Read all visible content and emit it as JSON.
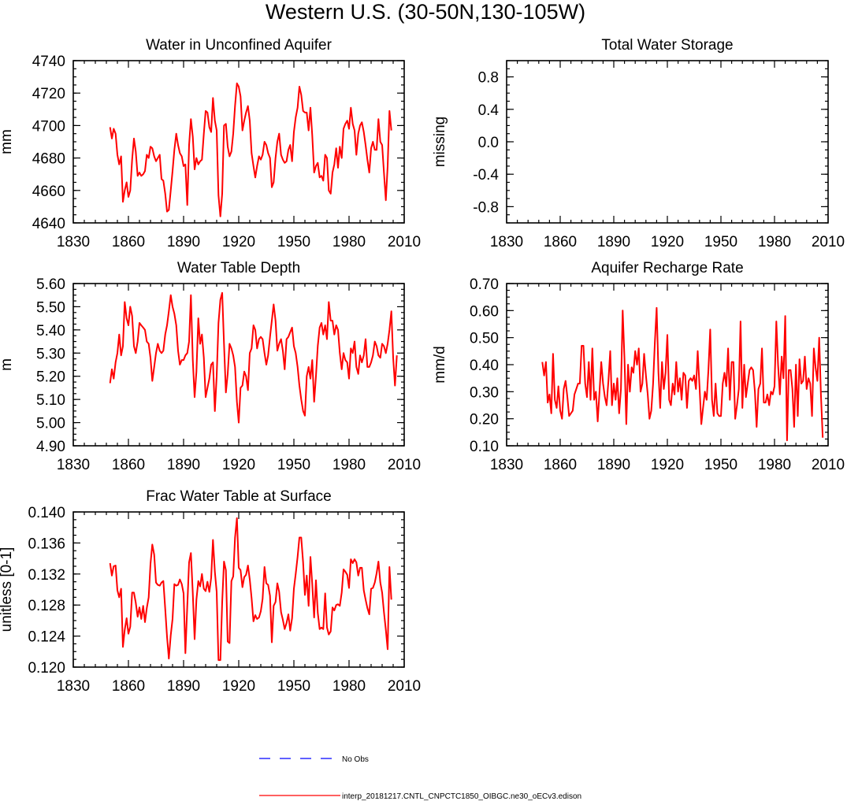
{
  "page": {
    "title": "Western U.S. (30-50N,130-105W)"
  },
  "legend": {
    "obs_label": "No Obs",
    "obs_color": "#0000ff",
    "model_label": "interp_20181217.CNTL_CNPCTC1850_OIBGC.ne30_oECv3.edison",
    "model_color": "#ff0000"
  },
  "chart_data": [
    {
      "id": "aquifer",
      "type": "line",
      "title": "Water in Unconfined Aquifer",
      "ylabel": "mm",
      "xlabel": "",
      "xlim": [
        1830,
        2010
      ],
      "xticks": [
        1830,
        1860,
        1890,
        1920,
        1950,
        1980,
        2010
      ],
      "ylim": [
        4640,
        4740
      ],
      "yticks": [
        "4640",
        "4660",
        "4680",
        "4700",
        "4720",
        "4740"
      ],
      "x_start": 1850,
      "series": [
        {
          "name": "interp_20181217.CNTL_CNPCTC1850_OIBGC.ne30_oECv3.edison",
          "values": [
            4699,
            4692,
            4698,
            4695,
            4682,
            4676,
            4681,
            4653,
            4660,
            4665,
            4656,
            4660,
            4679,
            4692,
            4684,
            4669,
            4671,
            4669,
            4670,
            4672,
            4682,
            4680,
            4687,
            4686,
            4681,
            4678,
            4680,
            4682,
            4667,
            4666,
            4658,
            4647,
            4648,
            4660,
            4672,
            4685,
            4695,
            4688,
            4683,
            4681,
            4675,
            4676,
            4651,
            4688,
            4704,
            4693,
            4673,
            4680,
            4676,
            4678,
            4679,
            4695,
            4709,
            4708,
            4699,
            4696,
            4717,
            4703,
            4697,
            4657,
            4644,
            4658,
            4700,
            4701,
            4687,
            4681,
            4684,
            4695,
            4712,
            4726,
            4724,
            4718,
            4697,
            4703,
            4708,
            4712,
            4703,
            4683,
            4675,
            4668,
            4675,
            4681,
            4679,
            4682,
            4690,
            4688,
            4683,
            4680,
            4662,
            4665,
            4680,
            4690,
            4695,
            4682,
            4679,
            4677,
            4678,
            4685,
            4688,
            4678,
            4696,
            4705,
            4711,
            4724,
            4719,
            4709,
            4708,
            4708,
            4697,
            4711,
            4694,
            4671,
            4675,
            4677,
            4668,
            4669,
            4666,
            4682,
            4680,
            4660,
            4658,
            4671,
            4676,
            4686,
            4674,
            4687,
            4680,
            4698,
            4701,
            4703,
            4698,
            4711,
            4701,
            4697,
            4682,
            4695,
            4700,
            4702,
            4696,
            4688,
            4679,
            4671,
            4686,
            4690,
            4685,
            4685,
            4704,
            4690,
            4688,
            4671,
            4654,
            4675,
            4709,
            4697
          ]
        }
      ]
    },
    {
      "id": "tws",
      "type": "line",
      "title": "Total Water Storage",
      "ylabel": "missing",
      "xlabel": "",
      "xlim": [
        1830,
        2010
      ],
      "xticks": [
        1830,
        1860,
        1890,
        1920,
        1950,
        1980,
        2010
      ],
      "ylim": [
        -1,
        1
      ],
      "yticks": [
        "-0.8",
        "-0.4",
        "0.0",
        "0.4",
        "0.8"
      ],
      "x_start": 1850,
      "series": []
    },
    {
      "id": "wtd",
      "type": "line",
      "title": "Water Table Depth",
      "ylabel": "m",
      "xlabel": "",
      "xlim": [
        1830,
        2010
      ],
      "xticks": [
        1830,
        1860,
        1890,
        1920,
        1950,
        1980,
        2010
      ],
      "ylim": [
        4.9,
        5.6
      ],
      "yticks": [
        "4.90",
        "5.00",
        "5.10",
        "5.20",
        "5.30",
        "5.40",
        "5.50",
        "5.60"
      ],
      "x_start": 1850,
      "series": [
        {
          "name": "interp_20181217.CNTL_CNPCTC1850_OIBGC.ne30_oECv3.edison",
          "values": [
            5.17,
            5.23,
            5.19,
            5.26,
            5.3,
            5.38,
            5.29,
            5.33,
            5.52,
            5.45,
            5.42,
            5.5,
            5.46,
            5.33,
            5.3,
            5.35,
            5.43,
            5.42,
            5.41,
            5.4,
            5.35,
            5.34,
            5.28,
            5.18,
            5.24,
            5.3,
            5.34,
            5.31,
            5.3,
            5.31,
            5.38,
            5.42,
            5.48,
            5.55,
            5.5,
            5.47,
            5.42,
            5.31,
            5.25,
            5.27,
            5.27,
            5.29,
            5.3,
            5.35,
            5.55,
            5.27,
            5.11,
            5.22,
            5.45,
            5.34,
            5.38,
            5.28,
            5.11,
            5.15,
            5.19,
            5.25,
            5.26,
            5.05,
            5.2,
            5.43,
            5.53,
            5.56,
            5.34,
            5.13,
            5.21,
            5.34,
            5.32,
            5.29,
            5.24,
            5.09,
            5.0,
            5.15,
            5.16,
            5.22,
            5.2,
            5.14,
            5.3,
            5.32,
            5.42,
            5.4,
            5.32,
            5.36,
            5.37,
            5.36,
            5.3,
            5.25,
            5.29,
            5.37,
            5.44,
            5.51,
            5.44,
            5.31,
            5.34,
            5.36,
            5.31,
            5.23,
            5.36,
            5.37,
            5.39,
            5.41,
            5.33,
            5.3,
            5.24,
            5.16,
            5.1,
            5.05,
            5.03,
            5.2,
            5.24,
            5.19,
            5.27,
            5.09,
            5.2,
            5.33,
            5.41,
            5.43,
            5.38,
            5.42,
            5.36,
            5.52,
            5.44,
            5.44,
            5.38,
            5.42,
            5.4,
            5.3,
            5.23,
            5.3,
            5.27,
            5.26,
            5.19,
            5.32,
            5.3,
            5.35,
            5.24,
            5.21,
            5.29,
            5.26,
            5.29,
            5.36,
            5.24,
            5.24,
            5.26,
            5.29,
            5.35,
            5.33,
            5.29,
            5.28,
            5.34,
            5.33,
            5.3,
            5.34,
            5.4,
            5.48,
            5.28,
            5.16,
            5.29
          ]
        }
      ]
    },
    {
      "id": "recharge",
      "type": "line",
      "title": "Aquifer Recharge Rate",
      "ylabel": "mm/d",
      "xlabel": "",
      "xlim": [
        1830,
        2010
      ],
      "xticks": [
        1830,
        1860,
        1890,
        1920,
        1950,
        1980,
        2010
      ],
      "ylim": [
        0.1,
        0.7
      ],
      "yticks": [
        "0.10",
        "0.20",
        "0.30",
        "0.40",
        "0.50",
        "0.60",
        "0.70"
      ],
      "x_start": 1850,
      "series": [
        {
          "name": "interp_20181217.CNTL_CNPCTC1850_OIBGC.ne30_oECv3.edison",
          "values": [
            0.41,
            0.36,
            0.41,
            0.26,
            0.29,
            0.22,
            0.44,
            0.27,
            0.24,
            0.32,
            0.23,
            0.2,
            0.31,
            0.34,
            0.28,
            0.21,
            0.22,
            0.23,
            0.29,
            0.31,
            0.33,
            0.33,
            0.47,
            0.47,
            0.33,
            0.28,
            0.41,
            0.27,
            0.46,
            0.27,
            0.3,
            0.19,
            0.3,
            0.41,
            0.33,
            0.28,
            0.25,
            0.34,
            0.45,
            0.25,
            0.33,
            0.27,
            0.35,
            0.22,
            0.31,
            0.6,
            0.42,
            0.18,
            0.4,
            0.3,
            0.39,
            0.37,
            0.45,
            0.4,
            0.46,
            0.3,
            0.33,
            0.44,
            0.36,
            0.29,
            0.2,
            0.23,
            0.33,
            0.48,
            0.61,
            0.37,
            0.24,
            0.41,
            0.31,
            0.37,
            0.51,
            0.27,
            0.25,
            0.33,
            0.29,
            0.41,
            0.3,
            0.35,
            0.27,
            0.37,
            0.36,
            0.24,
            0.34,
            0.35,
            0.34,
            0.36,
            0.31,
            0.45,
            0.32,
            0.18,
            0.24,
            0.3,
            0.27,
            0.38,
            0.53,
            0.27,
            0.21,
            0.33,
            0.22,
            0.21,
            0.21,
            0.33,
            0.37,
            0.32,
            0.46,
            0.27,
            0.41,
            0.41,
            0.2,
            0.25,
            0.31,
            0.56,
            0.24,
            0.4,
            0.28,
            0.33,
            0.38,
            0.39,
            0.38,
            0.3,
            0.17,
            0.31,
            0.33,
            0.46,
            0.26,
            0.26,
            0.29,
            0.25,
            0.3,
            0.29,
            0.32,
            0.56,
            0.4,
            0.29,
            0.43,
            0.35,
            0.58,
            0.12,
            0.38,
            0.38,
            0.31,
            0.17,
            0.4,
            0.21,
            0.42,
            0.33,
            0.34,
            0.43,
            0.31,
            0.35,
            0.33,
            0.21,
            0.46,
            0.39,
            0.34,
            0.5,
            0.29,
            0.13
          ]
        }
      ]
    },
    {
      "id": "frac",
      "type": "line",
      "title": "Frac Water Table at Surface",
      "ylabel": "unitless [0-1]",
      "xlabel": "",
      "xlim": [
        1830,
        2010
      ],
      "xticks": [
        1830,
        1860,
        1890,
        1920,
        1950,
        1980,
        2010
      ],
      "ylim": [
        0.12,
        0.14
      ],
      "yticks": [
        "0.120",
        "0.124",
        "0.128",
        "0.132",
        "0.136",
        "0.140"
      ],
      "x_start": 1850,
      "series": [
        {
          "name": "interp_20181217.CNTL_CNPCTC1850_OIBGC.ne30_oECv3.edison",
          "values": [
            0.1334,
            0.1318,
            0.133,
            0.1331,
            0.1299,
            0.129,
            0.1301,
            0.1226,
            0.1248,
            0.1263,
            0.1243,
            0.1252,
            0.1296,
            0.1296,
            0.1283,
            0.1265,
            0.1277,
            0.1262,
            0.1279,
            0.1258,
            0.1276,
            0.129,
            0.1333,
            0.1358,
            0.1345,
            0.1309,
            0.1306,
            0.1305,
            0.1309,
            0.1311,
            0.1275,
            0.1239,
            0.1211,
            0.1241,
            0.1262,
            0.1307,
            0.1305,
            0.1306,
            0.1313,
            0.1307,
            0.1295,
            0.1218,
            0.1279,
            0.1335,
            0.1347,
            0.1295,
            0.1236,
            0.1287,
            0.1311,
            0.1304,
            0.132,
            0.1301,
            0.1298,
            0.131,
            0.1297,
            0.1315,
            0.1364,
            0.1323,
            0.1297,
            0.1209,
            0.1209,
            0.1284,
            0.1336,
            0.1325,
            0.1233,
            0.1231,
            0.1311,
            0.1317,
            0.1367,
            0.1392,
            0.1328,
            0.1325,
            0.1303,
            0.1316,
            0.1319,
            0.1331,
            0.1313,
            0.1289,
            0.1259,
            0.1267,
            0.1262,
            0.1264,
            0.1272,
            0.1288,
            0.1329,
            0.1308,
            0.1306,
            0.1292,
            0.1232,
            0.1279,
            0.1284,
            0.1308,
            0.1297,
            0.1271,
            0.1261,
            0.1249,
            0.1257,
            0.1268,
            0.1247,
            0.1263,
            0.1301,
            0.132,
            0.1342,
            0.1367,
            0.1367,
            0.1335,
            0.1293,
            0.1318,
            0.1279,
            0.1342,
            0.1307,
            0.1264,
            0.1312,
            0.127,
            0.1249,
            0.1251,
            0.1249,
            0.1295,
            0.1251,
            0.1242,
            0.1246,
            0.1277,
            0.1273,
            0.128,
            0.1281,
            0.1279,
            0.1296,
            0.1326,
            0.1323,
            0.1319,
            0.1302,
            0.1339,
            0.1334,
            0.1339,
            0.1335,
            0.1318,
            0.1328,
            0.1328,
            0.1299,
            0.1287,
            0.1276,
            0.1268,
            0.1301,
            0.1302,
            0.1309,
            0.1321,
            0.1336,
            0.1309,
            0.1296,
            0.1271,
            0.1248,
            0.1223,
            0.1329,
            0.1287
          ]
        }
      ]
    }
  ]
}
